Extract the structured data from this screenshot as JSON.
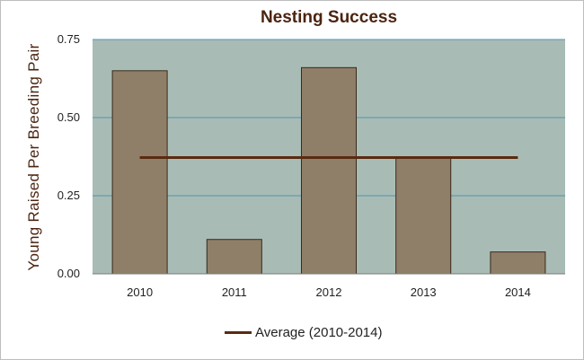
{
  "chart_data": {
    "type": "bar",
    "title": "Nesting Success",
    "xlabel": "",
    "ylabel": "Young Raised  Per Breeding  Pair",
    "categories": [
      "2010",
      "2011",
      "2012",
      "2013",
      "2014"
    ],
    "series": [
      {
        "values": [
          0.65,
          0.11,
          0.66,
          0.37,
          0.07
        ]
      }
    ],
    "reference_line": {
      "name": "Average (2010-2014)",
      "value": 0.372,
      "color": "#5a2a12"
    },
    "ylim": [
      0,
      0.75
    ],
    "yticks": [
      "0.00",
      "0.25",
      "0.50",
      "0.75"
    ],
    "grid": true,
    "legend_position": "bottom",
    "colors": {
      "plot_background": "#a8bcb5",
      "bar_fill": "#8f7f69",
      "bar_stroke": "#3a2a1a",
      "gridline": "#4f95b0",
      "title": "#4b2410"
    }
  }
}
